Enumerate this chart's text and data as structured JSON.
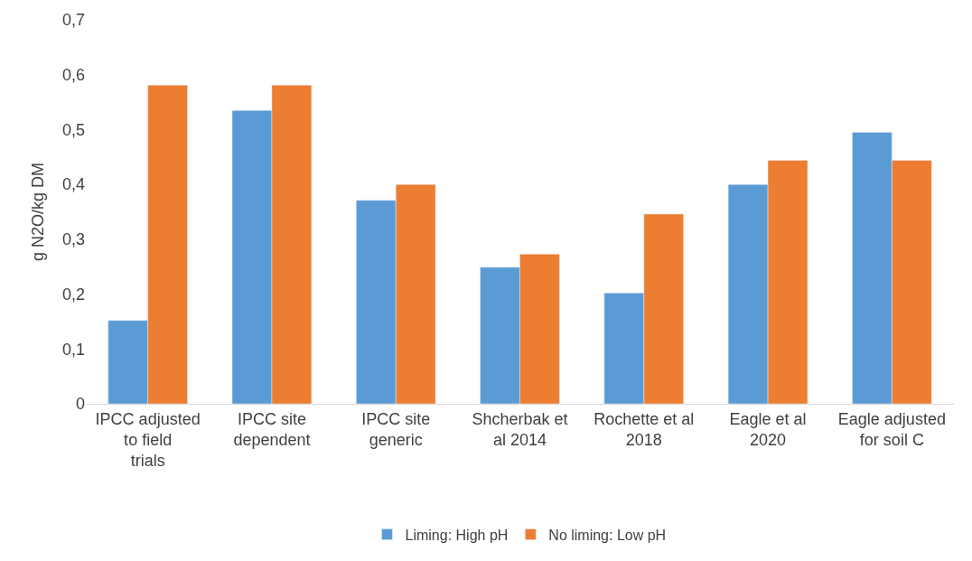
{
  "chart_data": {
    "type": "bar",
    "ylabel": "g N2O/kg DM",
    "categories": [
      "IPCC adjusted to field trials",
      "IPCC site dependent",
      "IPCC site generic",
      "Shcherbak et al 2014",
      "Rochette et al 2018",
      "Eagle et al 2020",
      "Eagle adjusted for soil C"
    ],
    "series": [
      {
        "name": "Liming: High pH",
        "color": "#5b9bd5",
        "values": [
          0.152,
          0.535,
          0.371,
          0.249,
          0.202,
          0.4,
          0.495
        ]
      },
      {
        "name": "No liming: Low pH",
        "color": "#ed7d31",
        "values": [
          0.581,
          0.581,
          0.4,
          0.273,
          0.346,
          0.444,
          0.444
        ]
      }
    ],
    "ylim": [
      0,
      0.7
    ],
    "yticks": [
      {
        "value": 0,
        "label": "0"
      },
      {
        "value": 0.1,
        "label": "0,1"
      },
      {
        "value": 0.2,
        "label": "0,2"
      },
      {
        "value": 0.3,
        "label": "0,3"
      },
      {
        "value": 0.4,
        "label": "0,4"
      },
      {
        "value": 0.5,
        "label": "0,5"
      },
      {
        "value": 0.6,
        "label": "0,6"
      },
      {
        "value": 0.7,
        "label": "0,7"
      }
    ],
    "grid": false,
    "legend": "bottom"
  }
}
